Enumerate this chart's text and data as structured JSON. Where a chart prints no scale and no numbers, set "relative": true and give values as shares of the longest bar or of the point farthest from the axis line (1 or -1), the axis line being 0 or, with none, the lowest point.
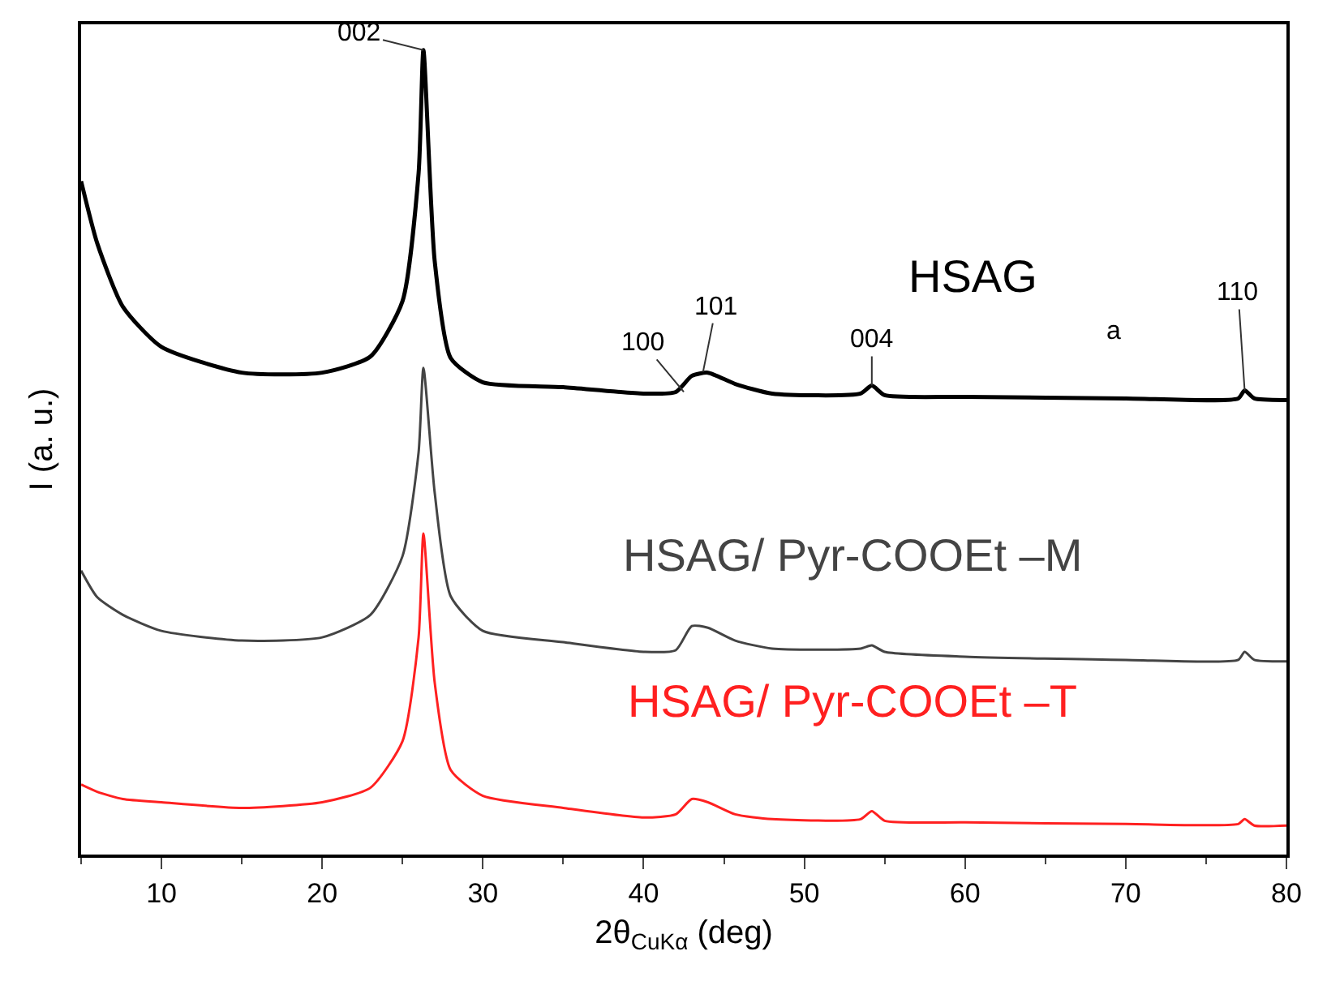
{
  "chart_data": {
    "type": "line",
    "xlabel": "2θ$_{CuKα}$ (deg)",
    "ylabel": "I (a. u.)",
    "relative": true,
    "xlim": [
      5,
      80
    ],
    "xticks": [
      10,
      20,
      30,
      40,
      50,
      60,
      70,
      80
    ],
    "tick_labels": "x",
    "grid": false,
    "legend": false,
    "marker": "none",
    "line_style": "solid",
    "x": [
      5,
      6,
      7.6,
      10,
      15,
      20,
      23,
      25,
      26,
      26.3,
      27,
      28,
      30,
      35,
      40,
      42,
      43,
      44,
      45.7,
      48,
      53.5,
      54.2,
      55,
      60,
      70,
      77,
      77.4,
      78,
      80
    ],
    "series": [
      {
        "name": "HSAG",
        "color": "#000000",
        "values": [
          0.837,
          0.76,
          0.681,
          0.631,
          0.599,
          0.599,
          0.619,
          0.688,
          0.847,
          1.0,
          0.738,
          0.617,
          0.587,
          0.581,
          0.573,
          0.575,
          0.595,
          0.599,
          0.585,
          0.573,
          0.573,
          0.583,
          0.571,
          0.569,
          0.567,
          0.567,
          0.577,
          0.567,
          0.565
        ]
      },
      {
        "name": "HSAG/ Pyr-COOEt –M",
        "color": "#444444",
        "values": [
          0.353,
          0.32,
          0.298,
          0.278,
          0.266,
          0.27,
          0.298,
          0.371,
          0.5,
          0.605,
          0.45,
          0.321,
          0.278,
          0.264,
          0.252,
          0.254,
          0.284,
          0.282,
          0.266,
          0.256,
          0.256,
          0.26,
          0.252,
          0.246,
          0.242,
          0.242,
          0.252,
          0.242,
          0.24
        ]
      },
      {
        "name": "HSAG/ Pyr-COOEt –T",
        "color": "#ff2020",
        "values": [
          0.087,
          0.078,
          0.069,
          0.065,
          0.058,
          0.065,
          0.083,
          0.141,
          0.27,
          0.399,
          0.214,
          0.105,
          0.073,
          0.058,
          0.046,
          0.05,
          0.069,
          0.065,
          0.05,
          0.044,
          0.044,
          0.054,
          0.042,
          0.04,
          0.038,
          0.038,
          0.044,
          0.036,
          0.036
        ]
      }
    ],
    "annotations": [
      {
        "text": "002",
        "x": 26.3,
        "y": 1.0
      },
      {
        "text": "100",
        "x": 42.5,
        "y": 0.575
      },
      {
        "text": "101",
        "x": 43.7,
        "y": 0.6
      },
      {
        "text": "004",
        "x": 54.2,
        "y": 0.583
      },
      {
        "text": "110",
        "x": 77.4,
        "y": 0.577
      },
      "a"
    ]
  }
}
